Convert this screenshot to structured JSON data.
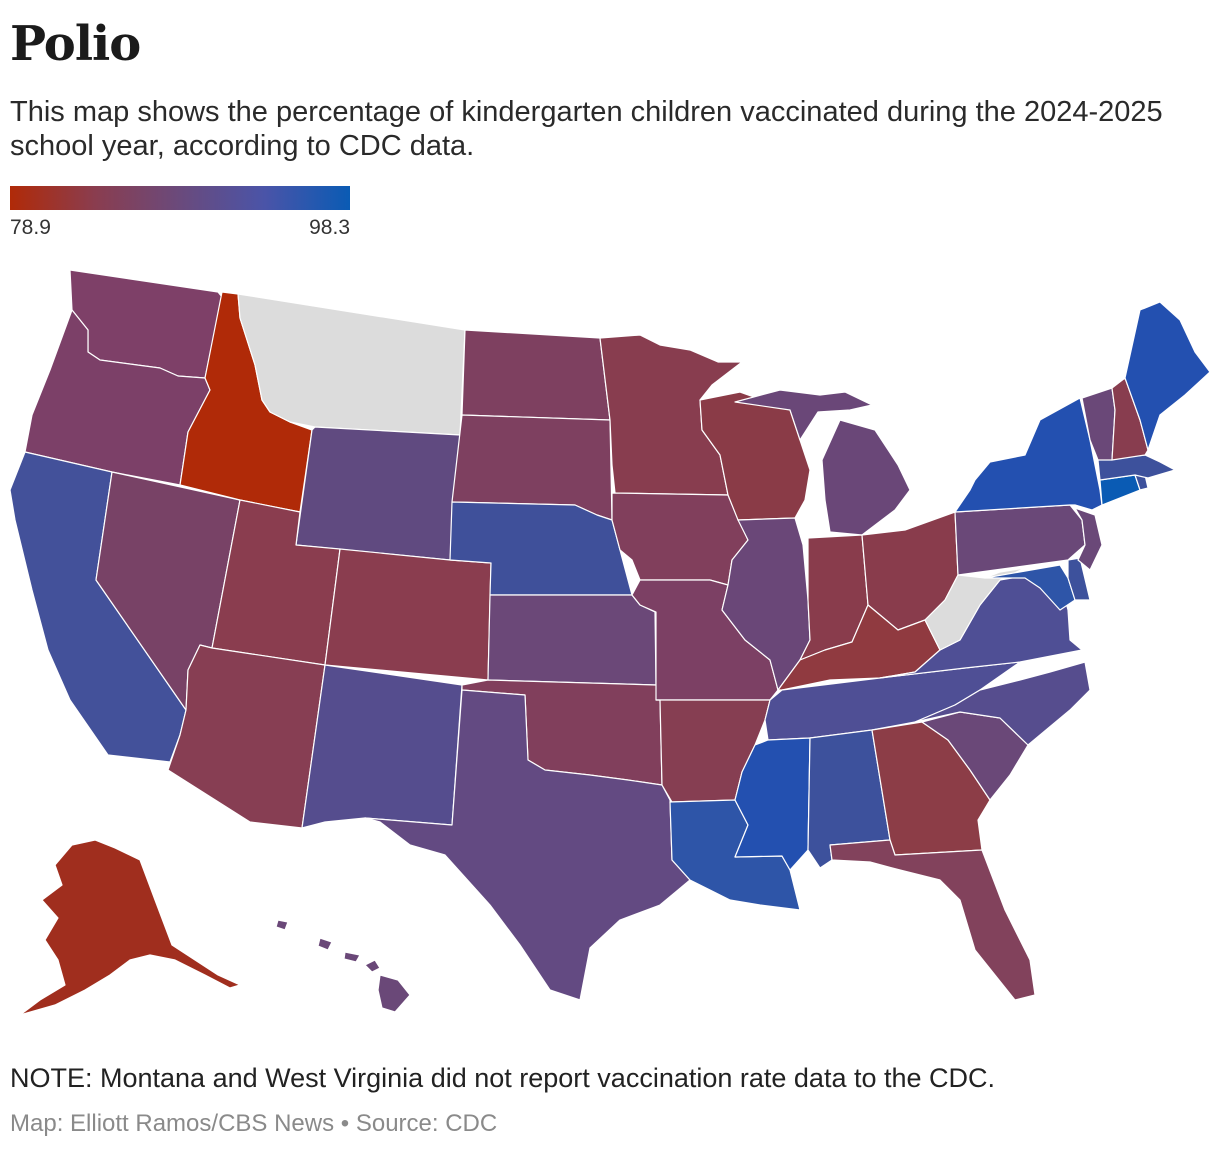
{
  "title": "Polio",
  "subtitle": "This map shows the percentage of kindergarten children vaccinated during the 2024-2025 school year, according to CDC data.",
  "legend": {
    "min_label": "78.9",
    "max_label": "98.3",
    "colors": [
      "#b02a08",
      "#8a3d4f",
      "#6a4a7c",
      "#4a54a8",
      "#0a5bb4"
    ]
  },
  "note": "NOTE: Montana and West Virginia did not report vaccination rate data to the CDC.",
  "credit": "Map: Elliott Ramos/CBS News • Source: CDC",
  "colors": {
    "no_data": "#dcdcdc",
    "scale_low": "#b02a08",
    "scale_high": "#0a5bb4"
  },
  "states": [
    {
      "id": "washington",
      "color": "#7e4068"
    },
    {
      "id": "oregon",
      "color": "#7c4068"
    },
    {
      "id": "california",
      "color": "#43519a"
    },
    {
      "id": "idaho",
      "color": "#b02a08"
    },
    {
      "id": "nevada",
      "color": "#784266"
    },
    {
      "id": "montana",
      "color": "#dcdcdc"
    },
    {
      "id": "wyoming",
      "color": "#604a80"
    },
    {
      "id": "utah",
      "color": "#8a3d4f"
    },
    {
      "id": "arizona",
      "color": "#873e53"
    },
    {
      "id": "colorado",
      "color": "#8a3d4f"
    },
    {
      "id": "new-mexico",
      "color": "#554d8e"
    },
    {
      "id": "north-dakota",
      "color": "#7e4060"
    },
    {
      "id": "south-dakota",
      "color": "#7e4060"
    },
    {
      "id": "nebraska",
      "color": "#3f509a"
    },
    {
      "id": "kansas",
      "color": "#6b4878"
    },
    {
      "id": "oklahoma",
      "color": "#813f5c"
    },
    {
      "id": "texas",
      "color": "#634a82"
    },
    {
      "id": "minnesota",
      "color": "#883d4f"
    },
    {
      "id": "iowa",
      "color": "#813f5c"
    },
    {
      "id": "missouri",
      "color": "#7c4064"
    },
    {
      "id": "arkansas",
      "color": "#863e52"
    },
    {
      "id": "louisiana",
      "color": "#2e55a8"
    },
    {
      "id": "wisconsin",
      "color": "#8a3b47"
    },
    {
      "id": "illinois",
      "color": "#6a4778"
    },
    {
      "id": "michigan",
      "color": "#6a4778"
    },
    {
      "id": "indiana",
      "color": "#893c4c"
    },
    {
      "id": "ohio",
      "color": "#893c4c"
    },
    {
      "id": "kentucky",
      "color": "#903a40"
    },
    {
      "id": "tennessee",
      "color": "#4f4f95"
    },
    {
      "id": "mississippi",
      "color": "#2350b0"
    },
    {
      "id": "alabama",
      "color": "#3d519c"
    },
    {
      "id": "georgia",
      "color": "#8c3d47"
    },
    {
      "id": "florida",
      "color": "#82425c"
    },
    {
      "id": "south-carolina",
      "color": "#6a4878"
    },
    {
      "id": "north-carolina",
      "color": "#564d8e"
    },
    {
      "id": "virginia",
      "color": "#4f4f95"
    },
    {
      "id": "west-virginia",
      "color": "#dcdcdc"
    },
    {
      "id": "pennsylvania",
      "color": "#6a4878"
    },
    {
      "id": "new-york",
      "color": "#2350b0"
    },
    {
      "id": "new-jersey",
      "color": "#6a4878"
    },
    {
      "id": "delaware",
      "color": "#3d519c"
    },
    {
      "id": "maryland",
      "color": "#2e55a8"
    },
    {
      "id": "vermont",
      "color": "#6a4878"
    },
    {
      "id": "new-hampshire",
      "color": "#883d4f"
    },
    {
      "id": "maine",
      "color": "#2350b0"
    },
    {
      "id": "massachusetts",
      "color": "#3d519c"
    },
    {
      "id": "connecticut",
      "color": "#0a5bb4"
    },
    {
      "id": "rhode-island",
      "color": "#3d519c"
    },
    {
      "id": "alaska",
      "color": "#a02e1e"
    },
    {
      "id": "hawaii",
      "color": "#6a4878"
    }
  ]
}
